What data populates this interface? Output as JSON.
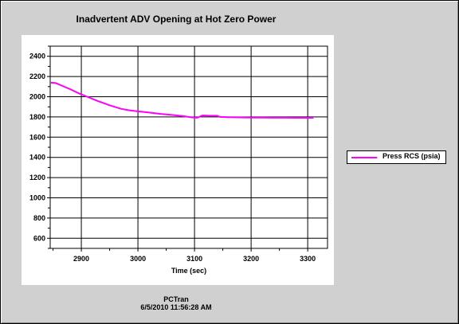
{
  "window": {
    "footer_app": "PCTran",
    "footer_timestamp": "6/5/2010 11:56:28 AM"
  },
  "chart_data": {
    "type": "line",
    "title": "Inadvertent ADV Opening at Hot Zero Power",
    "xlabel": "Time (sec)",
    "ylabel": "",
    "xlim": [
      2845,
      3335
    ],
    "ylim": [
      500,
      2500
    ],
    "x_ticks": [
      2900,
      3000,
      3100,
      3200,
      3300
    ],
    "y_ticks": [
      600,
      800,
      1000,
      1200,
      1400,
      1600,
      1800,
      2000,
      2200,
      2400
    ],
    "grid": true,
    "legend_position": "right",
    "series": [
      {
        "name": "Press RCS (psia)",
        "color": "#ff00ff",
        "x": [
          2845,
          2855,
          2865,
          2880,
          2895,
          2910,
          2930,
          2950,
          2970,
          2985,
          3000,
          3020,
          3040,
          3060,
          3080,
          3095,
          3105,
          3112,
          3115,
          3125,
          3140,
          3145,
          3160,
          3180,
          3200,
          3220,
          3240,
          3260,
          3280,
          3300,
          3310
        ],
        "y": [
          2140,
          2135,
          2110,
          2075,
          2035,
          2000,
          1955,
          1915,
          1880,
          1865,
          1855,
          1843,
          1830,
          1820,
          1808,
          1795,
          1792,
          1810,
          1815,
          1812,
          1812,
          1800,
          1797,
          1795,
          1794,
          1793,
          1792,
          1792,
          1791,
          1791,
          1791
        ]
      }
    ]
  }
}
